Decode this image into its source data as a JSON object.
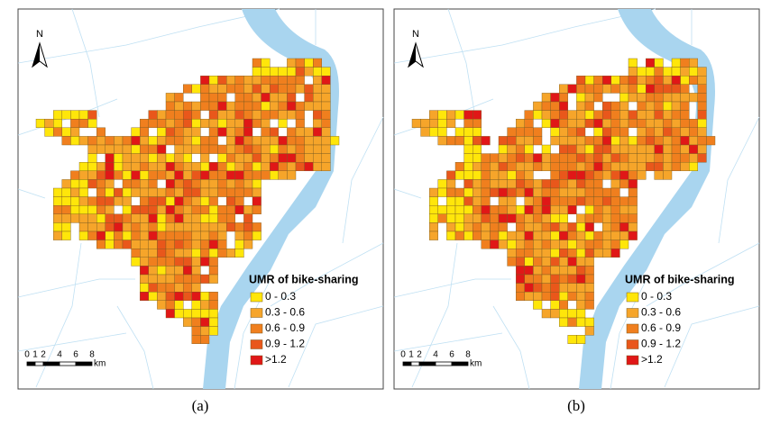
{
  "panels": [
    {
      "caption": "(a)",
      "north": "N",
      "legend": {
        "title": "UMR of bike-sharing",
        "items": [
          "0 - 0.3",
          "0.3 - 0.6",
          "0.6 - 0.9",
          "0.9 - 1.2",
          ">1.2"
        ],
        "colors": [
          "#ffe60a",
          "#f6a52a",
          "#f07f1e",
          "#e9571b",
          "#e01717"
        ]
      },
      "scale": {
        "ticks": [
          "0",
          "1",
          "2",
          "4",
          "6",
          "8"
        ],
        "unit": "km"
      }
    },
    {
      "caption": "(b)",
      "north": "N",
      "legend": {
        "title": "UMR of bike-sharing",
        "items": [
          "0 - 0.3",
          "0.3 - 0.6",
          "0.6 - 0.9",
          "0.9 - 1.2",
          ">1.2"
        ],
        "colors": [
          "#ffe60a",
          "#f6a52a",
          "#f07f1e",
          "#e9571b",
          "#e01717"
        ]
      },
      "scale": {
        "ticks": [
          "0",
          "1",
          "2",
          "4",
          "6",
          "8"
        ],
        "unit": "km"
      }
    }
  ]
}
